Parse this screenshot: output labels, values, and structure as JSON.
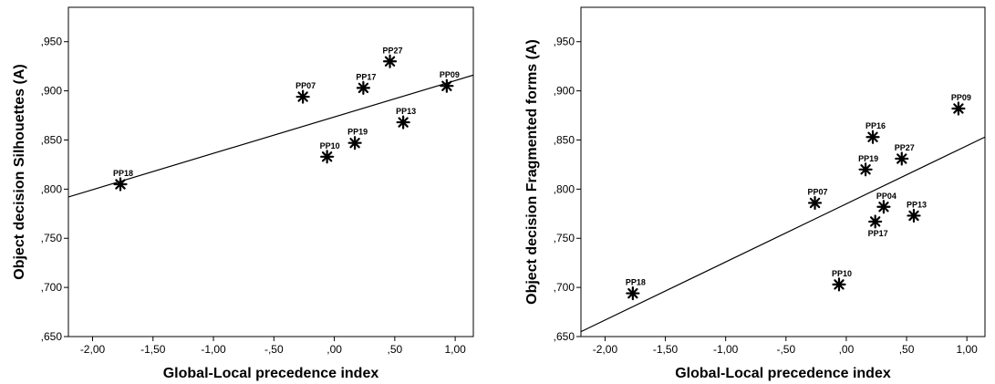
{
  "chart_data": [
    {
      "type": "scatter",
      "xlabel": "Global-Local precedence index",
      "ylabel": "Object decision Silhouettes (A)",
      "xlim": [
        -2.2,
        1.15
      ],
      "ylim": [
        0.65,
        0.985
      ],
      "x_ticks": [
        -2.0,
        -1.5,
        -1.0,
        -0.5,
        0.0,
        0.5,
        1.0
      ],
      "x_tick_labels": [
        "-2,00",
        "-1,50",
        "-1,00",
        "-,50",
        ",00",
        ",50",
        "1,00"
      ],
      "y_ticks": [
        0.65,
        0.7,
        0.75,
        0.8,
        0.85,
        0.9,
        0.95
      ],
      "y_tick_labels": [
        ",650",
        ",700",
        ",750",
        ",800",
        ",850",
        ",900",
        ",950"
      ],
      "grid": false,
      "fit_line": {
        "x": [
          -2.2,
          1.15
        ],
        "y": [
          0.792,
          0.916
        ]
      },
      "points": [
        {
          "label": "PP18",
          "x": -1.77,
          "y": 0.805,
          "label_pos": "above"
        },
        {
          "label": "PP07",
          "x": -0.26,
          "y": 0.894,
          "label_pos": "above"
        },
        {
          "label": "PP27",
          "x": 0.46,
          "y": 0.93,
          "label_pos": "above"
        },
        {
          "label": "PP17",
          "x": 0.24,
          "y": 0.903,
          "label_pos": "above"
        },
        {
          "label": "PP09",
          "x": 0.93,
          "y": 0.905,
          "label_pos": "above"
        },
        {
          "label": "PP13",
          "x": 0.57,
          "y": 0.868,
          "label_pos": "above"
        },
        {
          "label": "PP19",
          "x": 0.17,
          "y": 0.847,
          "label_pos": "above"
        },
        {
          "label": "PP10",
          "x": -0.06,
          "y": 0.833,
          "label_pos": "above"
        }
      ]
    },
    {
      "type": "scatter",
      "xlabel": "Global-Local precedence index",
      "ylabel": "Object decision Fragmented forms (A)",
      "xlim": [
        -2.2,
        1.15
      ],
      "ylim": [
        0.65,
        0.985
      ],
      "x_ticks": [
        -2.0,
        -1.5,
        -1.0,
        -0.5,
        0.0,
        0.5,
        1.0
      ],
      "x_tick_labels": [
        "-2,00",
        "-1,50",
        "-1,00",
        "-,50",
        ",00",
        ",50",
        "1,00"
      ],
      "y_ticks": [
        0.65,
        0.7,
        0.75,
        0.8,
        0.85,
        0.9,
        0.95
      ],
      "y_tick_labels": [
        ",650",
        ",700",
        ",750",
        ",800",
        ",850",
        ",900",
        ",950"
      ],
      "grid": false,
      "fit_line": {
        "x": [
          -2.2,
          1.15
        ],
        "y": [
          0.655,
          0.853
        ]
      },
      "points": [
        {
          "label": "PP18",
          "x": -1.77,
          "y": 0.694,
          "label_pos": "above"
        },
        {
          "label": "PP09",
          "x": 0.93,
          "y": 0.882,
          "label_pos": "above"
        },
        {
          "label": "PP16",
          "x": 0.22,
          "y": 0.853,
          "label_pos": "above"
        },
        {
          "label": "PP27",
          "x": 0.46,
          "y": 0.831,
          "label_pos": "above"
        },
        {
          "label": "PP19",
          "x": 0.16,
          "y": 0.82,
          "label_pos": "above"
        },
        {
          "label": "PP07",
          "x": -0.26,
          "y": 0.786,
          "label_pos": "above"
        },
        {
          "label": "PP04",
          "x": 0.31,
          "y": 0.782,
          "label_pos": "above"
        },
        {
          "label": "PP13",
          "x": 0.56,
          "y": 0.773,
          "label_pos": "above"
        },
        {
          "label": "PP17",
          "x": 0.24,
          "y": 0.767,
          "label_pos": "below"
        },
        {
          "label": "PP10",
          "x": -0.06,
          "y": 0.703,
          "label_pos": "above"
        }
      ]
    }
  ]
}
